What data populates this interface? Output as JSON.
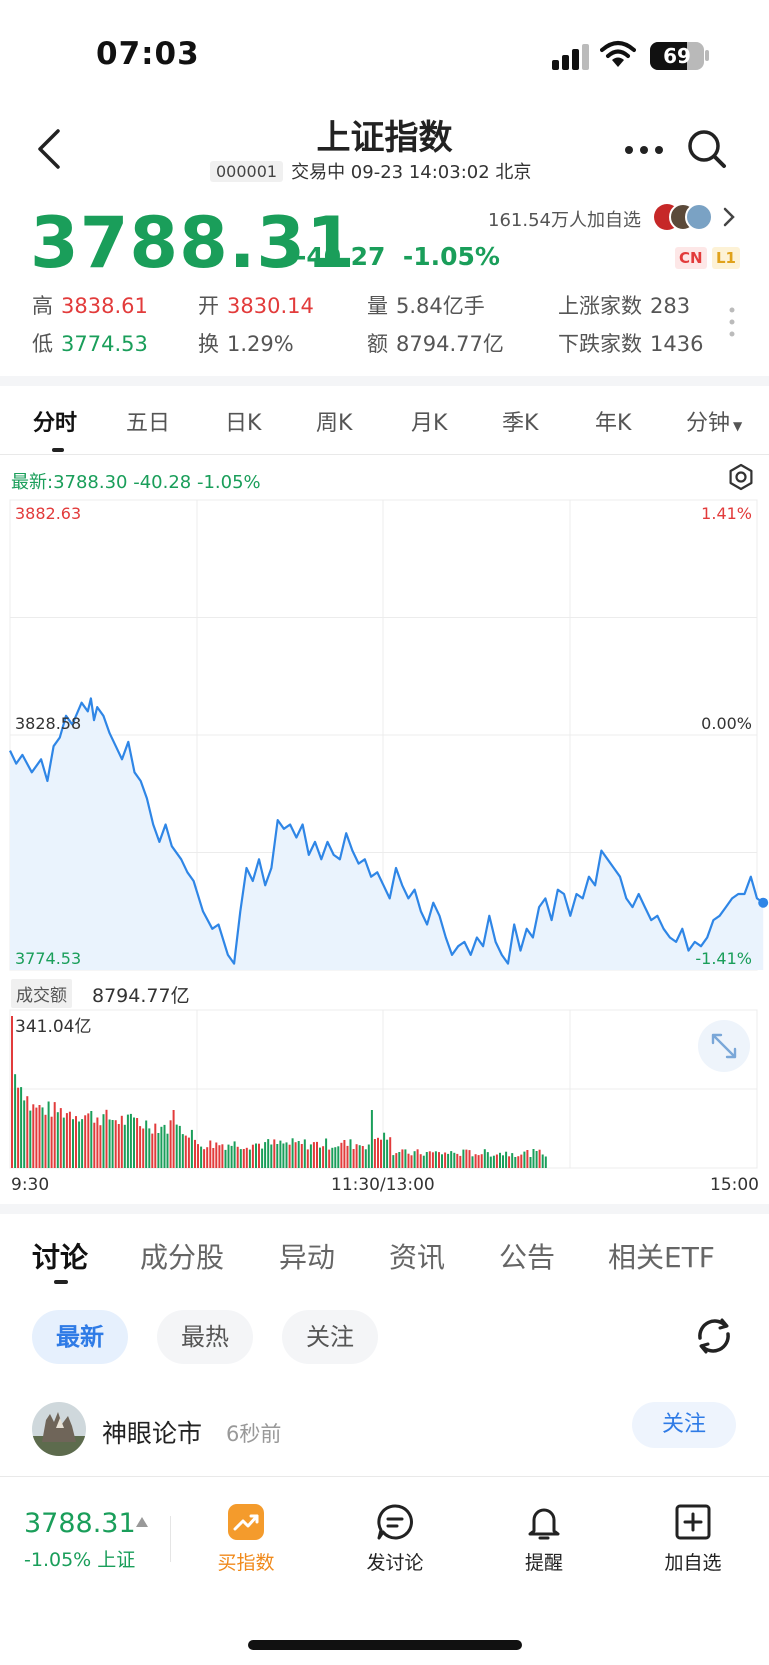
{
  "status_bar": {
    "time": "07:03",
    "battery": "69"
  },
  "header": {
    "title": "上证指数",
    "code": "000001",
    "status_text": "交易中 09-23 14:03:02 北京"
  },
  "quote": {
    "price": "3788.31",
    "change": "-40.27",
    "change_pct": "-1.05%",
    "watchers": "161.54万人加自选",
    "badge_cn": "CN",
    "badge_l1": "L1",
    "stats": [
      {
        "label": "高",
        "value": "3838.61",
        "tone": "red"
      },
      {
        "label": "开",
        "value": "3830.14",
        "tone": "red"
      },
      {
        "label": "量",
        "value": "5.84亿手",
        "tone": "grey"
      },
      {
        "label": "上涨家数",
        "value": "283",
        "tone": "grey"
      },
      {
        "label": "低",
        "value": "3774.53",
        "tone": "green"
      },
      {
        "label": "换",
        "value": "1.29%",
        "tone": "grey"
      },
      {
        "label": "额",
        "value": "8794.77亿",
        "tone": "grey"
      },
      {
        "label": "下跌家数",
        "value": "1436",
        "tone": "grey"
      }
    ]
  },
  "chart_tabs": [
    "分时",
    "五日",
    "日K",
    "周K",
    "月K",
    "季K",
    "年K",
    "分钟"
  ],
  "chart_latest": "最新:3788.30  -40.28  -1.05%",
  "turnover": {
    "label": "成交额",
    "value": "8794.77亿"
  },
  "colors": {
    "up": "#e23b3b",
    "down": "#1a9e5a",
    "line": "#2f86e6",
    "accent": "#2f7be6"
  },
  "icons": [
    "back-icon",
    "more-icon",
    "search-icon",
    "settings-icon",
    "expand-icon",
    "refresh-icon",
    "chart-icon",
    "chat-icon",
    "bell-icon",
    "plus-square-icon"
  ],
  "chart_data": [
    {
      "type": "line",
      "y_labels_left": [
        "3882.63",
        "3828.58",
        "3774.53"
      ],
      "y_labels_right": [
        "1.41%",
        "0.00%",
        "-1.41%"
      ],
      "ylim": [
        3774.53,
        3882.63
      ],
      "baseline": 3828.58,
      "x_labels": [
        "9:30",
        "11:30/13:00",
        "15:00"
      ],
      "x_range": [
        0,
        240
      ],
      "series": [
        {
          "x": [
            0,
            2,
            4,
            7,
            10,
            12,
            14,
            16,
            18,
            20,
            23,
            25,
            26,
            27,
            28,
            30,
            32,
            34,
            36,
            38,
            40,
            42,
            44,
            46,
            48,
            50,
            52,
            55,
            57,
            59,
            62,
            65,
            67,
            70,
            72,
            74,
            76,
            78,
            80,
            82,
            84,
            86,
            88,
            90,
            92,
            94,
            96,
            98,
            100,
            102,
            104,
            106,
            108,
            110,
            112,
            114,
            116,
            118,
            120,
            122,
            124,
            126,
            128,
            130,
            132,
            134,
            136,
            138,
            140,
            142,
            144,
            146,
            148,
            150,
            152,
            154,
            156,
            158,
            160,
            162,
            164,
            166,
            168,
            170,
            172,
            174,
            176,
            178,
            180,
            182,
            184,
            186,
            188,
            190,
            192,
            194,
            196,
            198,
            200,
            202,
            204,
            206,
            208,
            210,
            212,
            214,
            216,
            218,
            220,
            222,
            224,
            226,
            228,
            230,
            232,
            234,
            236,
            238,
            240,
            242
          ],
          "values": [
            3825,
            3822,
            3824,
            3820,
            3823,
            3818,
            3826,
            3828,
            3833,
            3831,
            3836,
            3834,
            3837,
            3832,
            3835,
            3833,
            3829,
            3826,
            3823,
            3827,
            3820,
            3818,
            3814,
            3808,
            3804,
            3808,
            3803,
            3800,
            3797,
            3795,
            3788,
            3784,
            3785,
            3778,
            3776,
            3788,
            3798,
            3795,
            3800,
            3794,
            3798,
            3809,
            3807,
            3808,
            3805,
            3808,
            3801,
            3804,
            3800,
            3804,
            3801,
            3800,
            3806,
            3802,
            3799,
            3800,
            3796,
            3797,
            3794,
            3791,
            3798,
            3794,
            3791,
            3793,
            3788,
            3785,
            3790,
            3787,
            3782,
            3778,
            3780,
            3781,
            3778,
            3782,
            3780,
            3787,
            3781,
            3778,
            3776,
            3785,
            3779,
            3784,
            3782,
            3789,
            3791,
            3786,
            3793,
            3792,
            3787,
            3792,
            3791,
            3796,
            3794,
            3802,
            3800,
            3798,
            3796,
            3791,
            3789,
            3792,
            3789,
            3786,
            3787,
            3784,
            3782,
            3781,
            3784,
            3779,
            3781,
            3780,
            3782,
            3786,
            3787,
            3789,
            3791,
            3792,
            3792,
            3796,
            3791,
            3790
          ]
        }
      ]
    },
    {
      "type": "bar",
      "y_label_top": "341.04亿",
      "ylim": [
        0,
        341.04
      ],
      "x_range": [
        0,
        240
      ]
    }
  ],
  "section_tabs": [
    "讨论",
    "成分股",
    "异动",
    "资讯",
    "公告",
    "相关ETF"
  ],
  "filters": [
    "最新",
    "最热",
    "关注"
  ],
  "post": {
    "user": "神眼论市",
    "time": "6秒前",
    "follow": "关注"
  },
  "bottom_bar": {
    "price": "3788.31",
    "change": "-1.05%",
    "index_name": "上证",
    "buttons": [
      "买指数",
      "发讨论",
      "提醒",
      "加自选"
    ]
  }
}
